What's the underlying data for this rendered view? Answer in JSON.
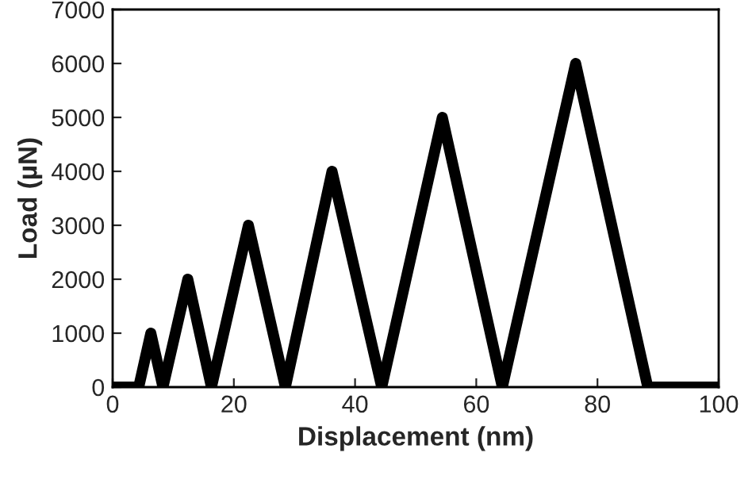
{
  "chart_data": {
    "type": "line",
    "xlabel": "Displacement (nm)",
    "ylabel": "Load (µN)",
    "x": [
      0,
      4.3,
      6.3,
      8.3,
      12.4,
      16.3,
      22.4,
      28.5,
      36.2,
      44.4,
      54.4,
      64.3,
      76.4,
      88.3,
      100
    ],
    "series": [
      {
        "color": "#000000",
        "values": [
          0,
          0,
          1000,
          0,
          2000,
          0,
          3000,
          0,
          4000,
          0,
          5000,
          0,
          6000,
          0,
          0
        ]
      }
    ],
    "xlim": [
      0,
      100
    ],
    "xticks": [
      0,
      20,
      40,
      60,
      80,
      100
    ],
    "ylim": [
      0,
      7000
    ],
    "yticks": [
      0,
      1000,
      2000,
      3000,
      4000,
      5000,
      6000,
      7000
    ],
    "grid": false,
    "legend": false,
    "line_style": "solid"
  }
}
